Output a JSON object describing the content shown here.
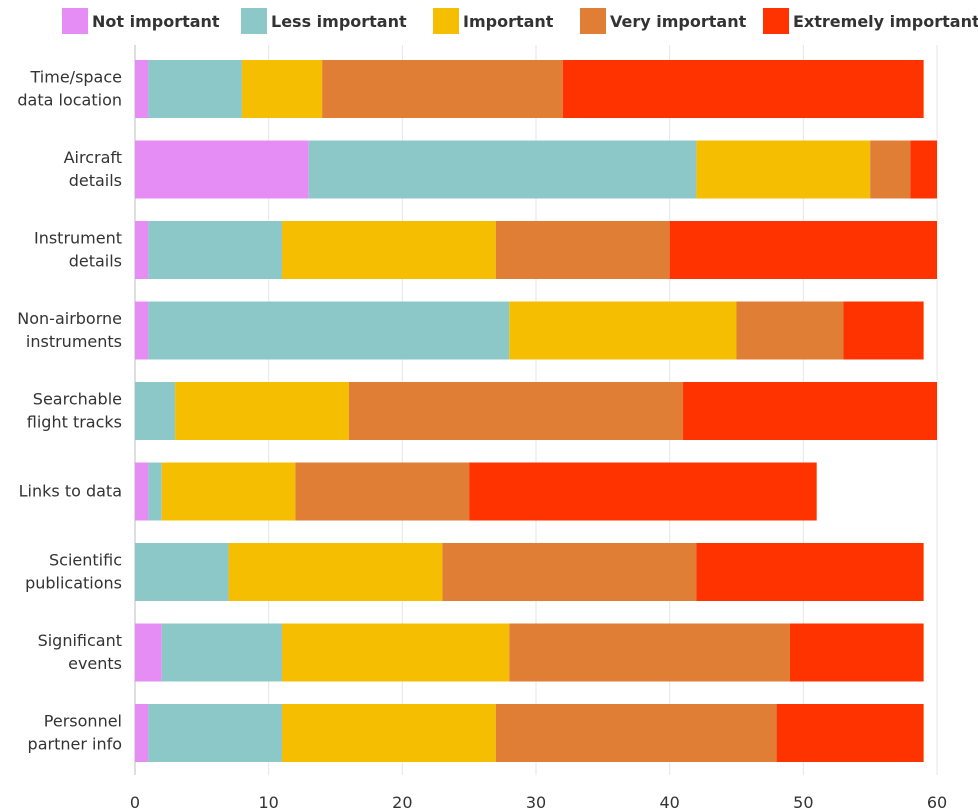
{
  "chart_data": {
    "type": "bar",
    "orientation": "horizontal",
    "stacked": true,
    "title": "",
    "xlabel": "",
    "ylabel": "",
    "xlim": [
      0,
      60
    ],
    "x_ticks": [
      0,
      10,
      20,
      30,
      40,
      50,
      60
    ],
    "grid": true,
    "legend_position": "top",
    "categories": [
      [
        "Time/space",
        "data location"
      ],
      [
        "Aircraft",
        "details"
      ],
      [
        "Instrument",
        "details"
      ],
      [
        "Non-airborne",
        "instruments"
      ],
      [
        "Searchable",
        "flight tracks"
      ],
      [
        "Links to data"
      ],
      [
        "Scientific",
        "publications"
      ],
      [
        "Significant",
        "events"
      ],
      [
        "Personnel",
        "partner info"
      ]
    ],
    "series": [
      {
        "name": "Not important",
        "color": "#e68cf5",
        "values": [
          1,
          13,
          1,
          1,
          0,
          1,
          0,
          2,
          1
        ]
      },
      {
        "name": "Less important",
        "color": "#8cc8c8",
        "values": [
          7,
          29,
          10,
          27,
          3,
          1,
          7,
          9,
          10
        ]
      },
      {
        "name": "Important",
        "color": "#f5be00",
        "values": [
          6,
          13,
          16,
          17,
          13,
          10,
          16,
          17,
          16
        ]
      },
      {
        "name": "Very important",
        "color": "#e07e35",
        "values": [
          18,
          3,
          13,
          8,
          25,
          13,
          19,
          21,
          21
        ]
      },
      {
        "name": "Extremely important",
        "color": "#ff3300",
        "values": [
          27,
          2,
          20,
          6,
          19,
          26,
          17,
          10,
          11
        ]
      }
    ]
  }
}
